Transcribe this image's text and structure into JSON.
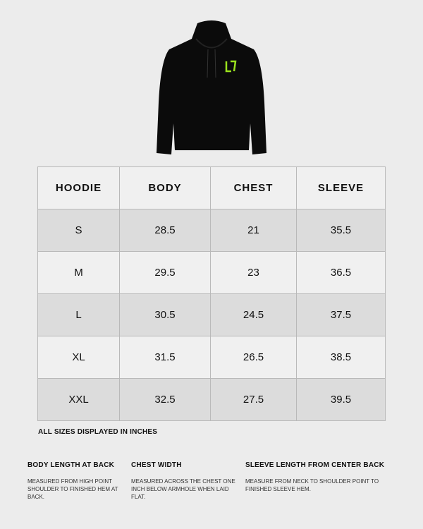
{
  "product_image": {
    "alt": "black hoodie",
    "logo_color": "#9be31d"
  },
  "table": {
    "headers": [
      "HOODIE",
      "BODY",
      "CHEST",
      "SLEEVE"
    ],
    "rows": [
      [
        "S",
        "28.5",
        "21",
        "35.5"
      ],
      [
        "M",
        "29.5",
        "23",
        "36.5"
      ],
      [
        "L",
        "30.5",
        "24.5",
        "37.5"
      ],
      [
        "XL",
        "31.5",
        "26.5",
        "38.5"
      ],
      [
        "XXL",
        "32.5",
        "27.5",
        "39.5"
      ]
    ]
  },
  "unit_note": "ALL SIZES DISPLAYED IN INCHES",
  "definitions": [
    {
      "title": "BODY LENGTH AT BACK",
      "text": "MEASURED FROM HIGH POINT SHOULDER TO FINISHED HEM AT BACK."
    },
    {
      "title": "CHEST WIDTH",
      "text": "MEASURED ACROSS THE CHEST ONE INCH BELOW ARMHOLE WHEN LAID FLAT."
    },
    {
      "title": "SLEEVE LENGTH FROM CENTER BACK",
      "text": "MEASURE FROM NECK TO SHOULDER POINT TO FINISHED SLEEVE HEM."
    }
  ]
}
